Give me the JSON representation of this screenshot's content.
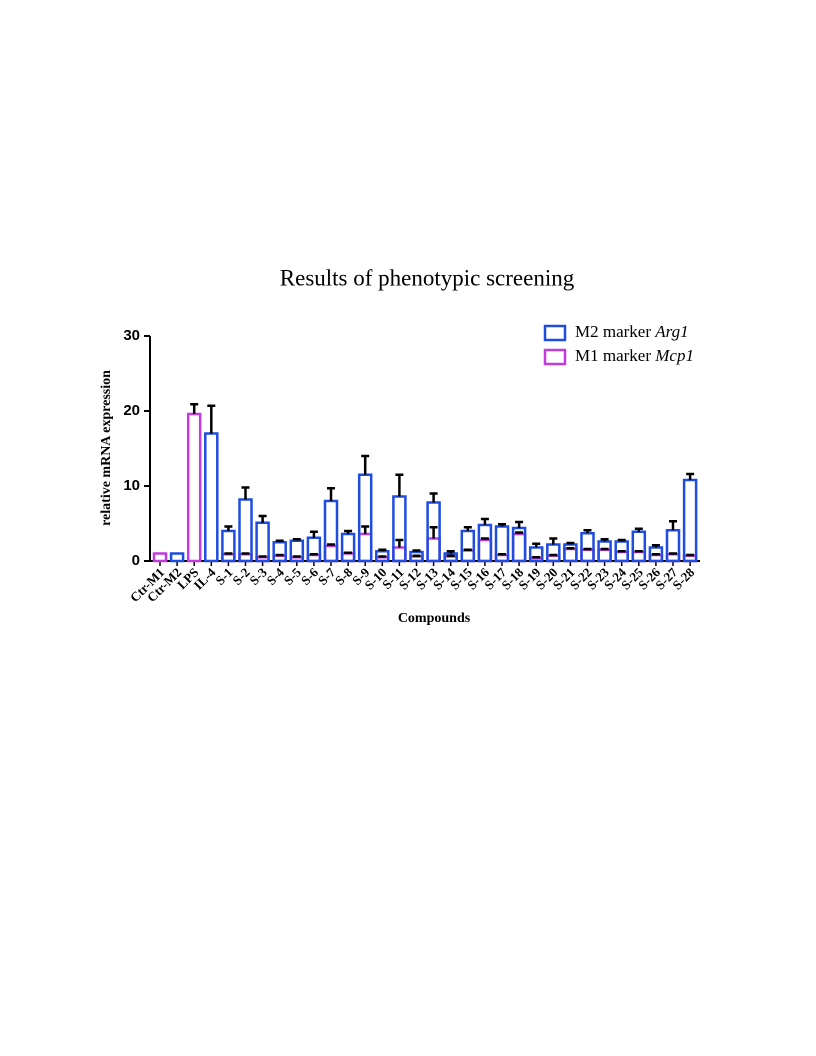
{
  "chart_data": {
    "type": "bar",
    "title": "Results of phenotypic screening",
    "xlabel": "Compounds",
    "ylabel": "relative mRNA expression",
    "categories": [
      "Ctr-M1",
      "Ctr-M2",
      "LPS",
      "IL-4",
      "S-1",
      "S-2",
      "S-3",
      "S-4",
      "S-5",
      "S-6",
      "S-7",
      "S-8",
      "S-9",
      "S-10",
      "S-11",
      "S-12",
      "S-13",
      "S-14",
      "S-15",
      "S-16",
      "S-17",
      "S-18",
      "S-19",
      "S-20",
      "S-21",
      "S-22",
      "S-23",
      "S-24",
      "S-25",
      "S-26",
      "S-27",
      "S-28"
    ],
    "series": [
      {
        "name": "M2 marker Arg1",
        "color": "#1f4de0",
        "values": [
          null,
          1,
          null,
          17,
          4.0,
          8.2,
          5.1,
          2.5,
          2.7,
          3.1,
          8.0,
          3.6,
          11.5,
          1.3,
          8.6,
          1.2,
          7.8,
          1.0,
          4.0,
          4.8,
          4.6,
          4.4,
          1.8,
          2.2,
          2.2,
          3.7,
          2.6,
          2.6,
          3.9,
          1.8,
          4.1,
          10.8
        ],
        "errors": [
          null,
          null,
          null,
          3.7,
          0.6,
          1.6,
          0.9,
          0.2,
          0.2,
          0.8,
          1.7,
          0.4,
          2.5,
          0.2,
          2.9,
          0.2,
          1.2,
          0.3,
          0.5,
          0.8,
          0.3,
          0.8,
          0.5,
          0.8,
          0.2,
          0.4,
          0.3,
          0.2,
          0.4,
          0.3,
          1.2,
          0.8
        ]
      },
      {
        "name": "M1 marker Mcp1",
        "color": "#c23be0",
        "values": [
          1,
          null,
          19.6,
          null,
          0.9,
          0.9,
          0.5,
          0.7,
          0.5,
          0.8,
          2.0,
          1.0,
          3.6,
          0.5,
          1.8,
          0.6,
          3.0,
          0.6,
          1.4,
          2.8,
          0.8,
          3.6,
          0.4,
          0.7,
          1.6,
          1.5,
          1.5,
          1.2,
          1.2,
          0.8,
          0.9,
          0.7
        ],
        "errors": [
          null,
          null,
          1.3,
          null,
          0.1,
          0.1,
          0.1,
          0.1,
          0.1,
          0.1,
          0.2,
          0.1,
          1.0,
          0.1,
          1.0,
          0.1,
          1.5,
          0.1,
          0.1,
          0.2,
          0.1,
          0.2,
          0.1,
          0.1,
          0.1,
          0.1,
          0.1,
          0.1,
          0.1,
          0.1,
          0.1,
          0.1
        ]
      }
    ],
    "ylim": [
      0,
      30
    ],
    "yticks": [
      0,
      10,
      20,
      30
    ],
    "legend": "upper right"
  }
}
